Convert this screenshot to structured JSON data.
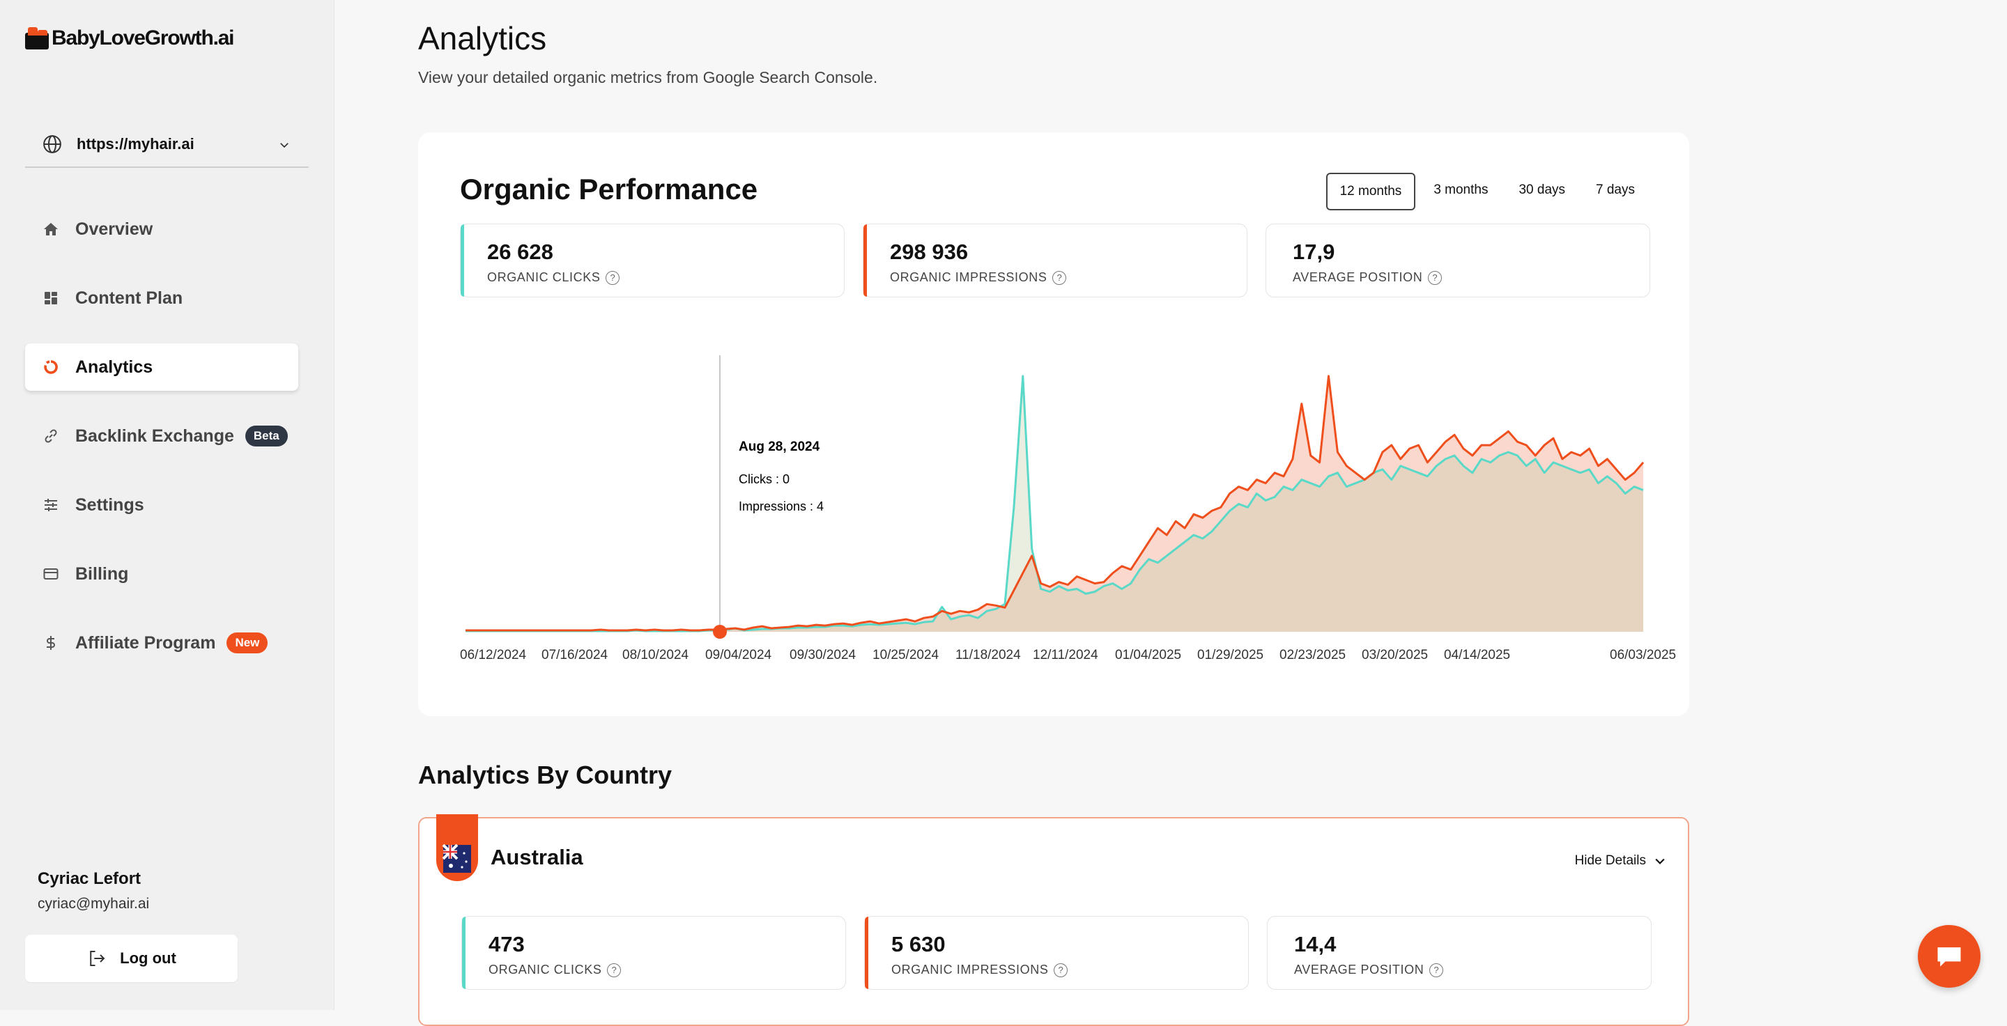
{
  "app": {
    "brand": "BabyLoveGrowth.ai",
    "site": "https://myhair.ai"
  },
  "sidebar": {
    "items": [
      {
        "label": "Overview",
        "icon": "home-icon"
      },
      {
        "label": "Content Plan",
        "icon": "grid-icon"
      },
      {
        "label": "Analytics",
        "icon": "analytics-ring-icon",
        "active": true
      },
      {
        "label": "Backlink Exchange",
        "icon": "link-icon",
        "badge": "Beta"
      },
      {
        "label": "Settings",
        "icon": "sliders-icon"
      },
      {
        "label": "Billing",
        "icon": "card-icon"
      },
      {
        "label": "Affiliate Program",
        "icon": "dollar-icon",
        "badge": "New"
      }
    ],
    "user": {
      "name": "Cyriac Lefort",
      "email": "cyriac@myhair.ai"
    },
    "logout_label": "Log out"
  },
  "page": {
    "title": "Analytics",
    "subtitle": "View your detailed organic metrics from Google Search Console."
  },
  "performance": {
    "title": "Organic Performance",
    "periods": [
      "12 months",
      "3 months",
      "30 days",
      "7 days"
    ],
    "selected_period": "12 months",
    "metrics": [
      {
        "value": "26 628",
        "label": "ORGANIC CLICKS",
        "accent": "#5ad8c8"
      },
      {
        "value": "298 936",
        "label": "ORGANIC IMPRESSIONS",
        "accent": "#ef4f1c"
      },
      {
        "value": "17,9",
        "label": "AVERAGE POSITION",
        "accent": "#ffffff"
      }
    ],
    "tooltip": {
      "date": "Aug 28, 2024",
      "clicks": "Clicks : 0",
      "impressions": "Impressions : 4"
    }
  },
  "colors": {
    "accent": "#ef4f1c",
    "clicks": "#5ad8c8",
    "impressions": "#ef4f1c"
  },
  "chart_data": {
    "type": "area",
    "x_ticks": [
      "06/12/2024",
      "07/16/2024",
      "08/10/2024",
      "09/04/2024",
      "09/30/2024",
      "10/25/2024",
      "11/18/2024",
      "12/11/2024",
      "01/04/2025",
      "01/29/2025",
      "02/23/2025",
      "03/20/2025",
      "04/14/2025",
      "06/03/2025"
    ],
    "series": [
      {
        "name": "Impressions",
        "values": [
          2,
          2,
          2,
          2,
          2,
          2,
          2,
          2,
          2,
          2,
          2,
          2,
          2,
          2,
          2,
          3,
          2,
          2,
          2,
          3,
          2,
          3,
          2,
          2,
          3,
          2,
          2,
          3,
          3,
          4,
          5,
          3,
          6,
          8,
          5,
          6,
          7,
          9,
          8,
          10,
          9,
          11,
          12,
          10,
          13,
          15,
          12,
          14,
          16,
          18,
          15,
          20,
          22,
          30,
          26,
          30,
          28,
          32,
          40,
          38,
          35,
          60,
          85,
          110,
          70,
          65,
          72,
          68,
          80,
          75,
          70,
          72,
          85,
          95,
          90,
          110,
          130,
          150,
          140,
          160,
          150,
          170,
          165,
          175,
          180,
          200,
          210,
          205,
          220,
          215,
          230,
          225,
          250,
          330,
          255,
          245,
          370,
          260,
          240,
          230,
          220,
          230,
          260,
          270,
          250,
          265,
          270,
          245,
          260,
          275,
          285,
          265,
          255,
          270,
          270,
          280,
          290,
          275,
          270,
          255,
          270,
          280,
          250,
          260,
          255,
          265,
          240,
          250,
          235,
          220,
          230,
          245
        ]
      },
      {
        "name": "Clicks",
        "values": [
          1,
          1,
          1,
          1,
          1,
          1,
          1,
          1,
          1,
          1,
          1,
          1,
          1,
          1,
          1,
          1,
          1,
          1,
          1,
          2,
          1,
          1,
          1,
          1,
          1,
          1,
          1,
          2,
          2,
          3,
          5,
          2,
          3,
          4,
          4,
          5,
          5,
          6,
          6,
          7,
          7,
          9,
          9,
          8,
          10,
          11,
          10,
          11,
          12,
          13,
          11,
          14,
          15,
          36,
          18,
          22,
          24,
          20,
          30,
          33,
          40,
          180,
          370,
          120,
          62,
          58,
          66,
          60,
          62,
          55,
          58,
          66,
          70,
          62,
          70,
          90,
          105,
          100,
          110,
          120,
          130,
          140,
          135,
          145,
          160,
          175,
          185,
          180,
          200,
          190,
          195,
          210,
          205,
          220,
          215,
          210,
          225,
          230,
          210,
          215,
          220,
          230,
          235,
          220,
          240,
          235,
          230,
          225,
          240,
          250,
          255,
          240,
          230,
          250,
          245,
          255,
          260,
          255,
          240,
          250,
          230,
          245,
          240,
          235,
          230,
          235,
          215,
          225,
          215,
          200,
          210,
          205
        ]
      }
    ],
    "ylim": [
      0,
      380
    ]
  },
  "country_section": {
    "title": "Analytics By Country",
    "country": "Australia",
    "toggle_label": "Hide Details",
    "metrics": [
      {
        "value": "473",
        "label": "ORGANIC CLICKS",
        "accent": "#5ad8c8"
      },
      {
        "value": "5 630",
        "label": "ORGANIC IMPRESSIONS",
        "accent": "#ef4f1c"
      },
      {
        "value": "14,4",
        "label": "AVERAGE POSITION",
        "accent": "#ffffff"
      }
    ]
  }
}
